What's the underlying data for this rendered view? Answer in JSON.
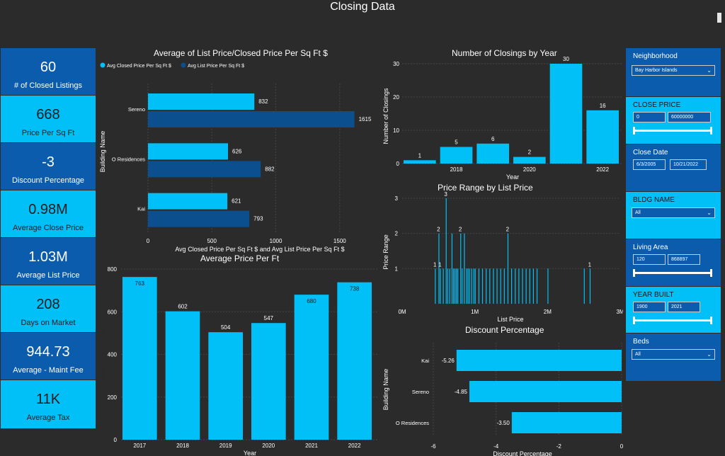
{
  "title": "Closing Data",
  "kpis": [
    {
      "value": "60",
      "label": "# of Closed Listings"
    },
    {
      "value": "668",
      "label": "Price Per Sq Ft"
    },
    {
      "value": "-3",
      "label": "Discount Percentage"
    },
    {
      "value": "0.98M",
      "label": "Average Close Price"
    },
    {
      "value": "1.03M",
      "label": "Average List Price"
    },
    {
      "value": "208",
      "label": "Days on Market"
    },
    {
      "value": "944.73",
      "label": "Average - Maint Fee"
    },
    {
      "value": "11K",
      "label": "Average Tax"
    }
  ],
  "slicers": {
    "neighborhood": {
      "title": "Neighborhood",
      "value": "Bay Harbor Islands"
    },
    "close_price": {
      "title": "CLOSE PRICE",
      "min": "0",
      "max": "60000000"
    },
    "close_date": {
      "title": "Close Date",
      "min": "6/3/2005",
      "max": "10/21/2022"
    },
    "bldg_name": {
      "title": "BLDG NAME",
      "value": "All"
    },
    "living_area": {
      "title": "Living Area",
      "min": "120",
      "max": "868897"
    },
    "year_built": {
      "title": "YEAR BUILT",
      "min": "1900",
      "max": "2021"
    },
    "beds": {
      "title": "Beds",
      "value": "All"
    }
  },
  "colors": {
    "light": "#00c0f7",
    "dark": "#0b4f8f",
    "panel_blue": "#0b5cad"
  },
  "chart_data": [
    {
      "type": "bar",
      "orientation": "horizontal",
      "title": "Average of List Price/Closed Price Per Sq Ft $",
      "xlabel": "Avg Closed Price Per Sq Ft $ and Avg List Price Per Sq Ft $",
      "ylabel": "Building Name",
      "categories": [
        "Sereno",
        "O Residences",
        "Kai"
      ],
      "series": [
        {
          "name": "Avg Closed Price Per Sq Ft $",
          "values": [
            832,
            626,
            621
          ]
        },
        {
          "name": "Avg List Price Per Sq Ft $",
          "values": [
            1615,
            882,
            793
          ]
        }
      ],
      "xticks": [
        0,
        500,
        1000,
        1500
      ],
      "xlim": [
        0,
        1800
      ],
      "legend": "top-left"
    },
    {
      "type": "bar",
      "title": "Number of Closings by Year",
      "xlabel": "Year",
      "ylabel": "Number of Closings",
      "categories": [
        "2017",
        "2018",
        "2019",
        "2020",
        "2021",
        "2022"
      ],
      "values": [
        1,
        5,
        6,
        2,
        30,
        16
      ],
      "xticks": [
        "2018",
        "2020",
        "2022"
      ],
      "yticks": [
        0,
        10,
        20,
        30
      ],
      "ylim": [
        0,
        30
      ]
    },
    {
      "type": "bar",
      "title": "Price Range by List Price",
      "xlabel": "List Price",
      "ylabel": "Price Range",
      "xticks": [
        "0M",
        "1M",
        "2M",
        "3M"
      ],
      "yticks": [
        1,
        2,
        3
      ],
      "xlim": [
        0,
        3000000
      ],
      "ylim": [
        0,
        3
      ],
      "points": [
        {
          "x": 450000,
          "y": 1,
          "label": "1"
        },
        {
          "x": 500000,
          "y": 2,
          "label": "2"
        },
        {
          "x": 520000,
          "y": 1,
          "label": "1"
        },
        {
          "x": 560000,
          "y": 1
        },
        {
          "x": 600000,
          "y": 3,
          "label": "3"
        },
        {
          "x": 620000,
          "y": 1
        },
        {
          "x": 650000,
          "y": 1
        },
        {
          "x": 680000,
          "y": 2
        },
        {
          "x": 700000,
          "y": 1
        },
        {
          "x": 720000,
          "y": 1
        },
        {
          "x": 740000,
          "y": 1
        },
        {
          "x": 760000,
          "y": 1
        },
        {
          "x": 800000,
          "y": 2,
          "label": "2"
        },
        {
          "x": 820000,
          "y": 1
        },
        {
          "x": 850000,
          "y": 2
        },
        {
          "x": 880000,
          "y": 1
        },
        {
          "x": 900000,
          "y": 1
        },
        {
          "x": 920000,
          "y": 1
        },
        {
          "x": 950000,
          "y": 1
        },
        {
          "x": 980000,
          "y": 1
        },
        {
          "x": 1000000,
          "y": 1
        },
        {
          "x": 1050000,
          "y": 1
        },
        {
          "x": 1100000,
          "y": 1
        },
        {
          "x": 1150000,
          "y": 1
        },
        {
          "x": 1200000,
          "y": 1
        },
        {
          "x": 1250000,
          "y": 1
        },
        {
          "x": 1300000,
          "y": 1
        },
        {
          "x": 1350000,
          "y": 1
        },
        {
          "x": 1400000,
          "y": 1
        },
        {
          "x": 1450000,
          "y": 2,
          "label": "2"
        },
        {
          "x": 1500000,
          "y": 1
        },
        {
          "x": 1550000,
          "y": 1
        },
        {
          "x": 1600000,
          "y": 1
        },
        {
          "x": 1650000,
          "y": 1
        },
        {
          "x": 1700000,
          "y": 1
        },
        {
          "x": 1750000,
          "y": 1
        },
        {
          "x": 1800000,
          "y": 1
        },
        {
          "x": 1850000,
          "y": 1
        },
        {
          "x": 2000000,
          "y": 1
        },
        {
          "x": 2500000,
          "y": 1
        },
        {
          "x": 2580000,
          "y": 1,
          "label": "1"
        }
      ]
    },
    {
      "type": "bar",
      "title": "Average Price Per Ft",
      "xlabel": "Year",
      "ylabel": "Average Price Per Ft",
      "categories": [
        "2017",
        "2018",
        "2019",
        "2020",
        "2021",
        "2022"
      ],
      "values": [
        763,
        602,
        504,
        547,
        680,
        738
      ],
      "yticks": [
        0,
        200,
        400,
        600,
        800
      ],
      "ylim": [
        0,
        800
      ]
    },
    {
      "type": "bar",
      "orientation": "horizontal",
      "title": "Discount Percentage",
      "xlabel": "Discount Percentage",
      "ylabel": "Building Name",
      "categories": [
        "Kai",
        "Sereno",
        "O Residences"
      ],
      "values": [
        -5.26,
        -4.85,
        -3.5
      ],
      "value_labels": [
        "-5.26",
        "-4.85",
        "-3.50"
      ],
      "xticks": [
        -6,
        -4,
        -2,
        0
      ],
      "xlim": [
        -6,
        0
      ]
    }
  ]
}
